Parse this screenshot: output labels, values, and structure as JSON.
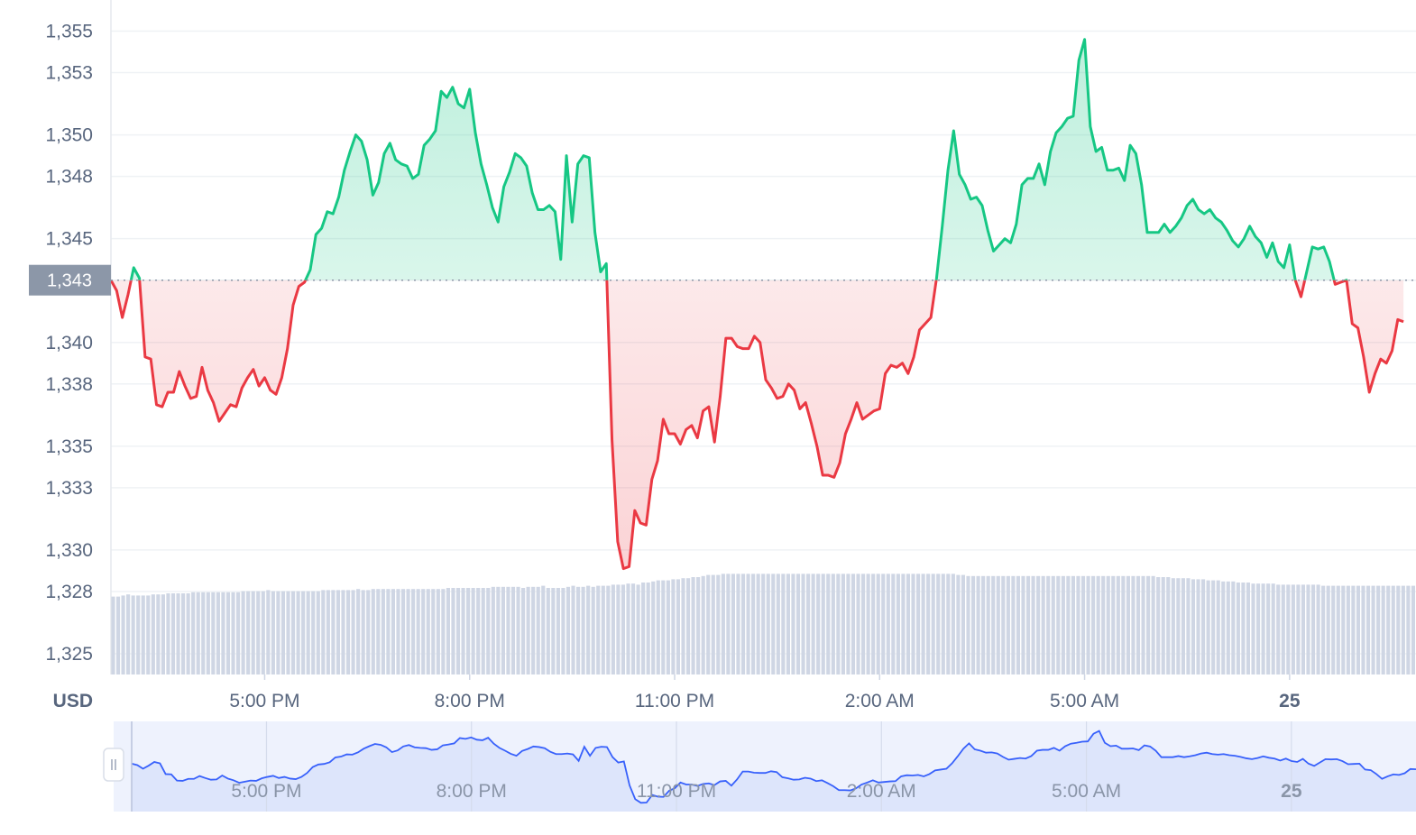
{
  "chart_data": {
    "type": "line",
    "currency_label": "USD",
    "current_price": 1343,
    "current_price_label": "1,343",
    "y_ticks": [
      1325,
      1328,
      1330,
      1333,
      1335,
      1338,
      1340,
      1343,
      1345,
      1348,
      1350,
      1353,
      1355
    ],
    "y_tick_labels": [
      "1,325",
      "1,328",
      "1,330",
      "1,333",
      "1,335",
      "1,338",
      "1,340",
      "1,343",
      "1,345",
      "1,348",
      "1,350",
      "1,353",
      "1,355"
    ],
    "ylim": [
      1324,
      1356.5
    ],
    "x_ticks": [
      {
        "label": "5:00 PM",
        "t": 2.25,
        "bold": false
      },
      {
        "label": "8:00 PM",
        "t": 5.25,
        "bold": false
      },
      {
        "label": "11:00 PM",
        "t": 8.25,
        "bold": false
      },
      {
        "label": "2:00 AM",
        "t": 11.25,
        "bold": false
      },
      {
        "label": "5:00 AM",
        "t": 14.25,
        "bold": false
      },
      {
        "label": "25",
        "t": 17.25,
        "bold": true
      }
    ],
    "xlim": [
      0,
      19.1
    ],
    "colors": {
      "up": "#16c784",
      "down": "#ea3943",
      "volume": "#cfd6e4",
      "navigator_line": "#3861fb",
      "navigator_fill": "#dde5fb",
      "grid": "#eff2f5",
      "badge": "#8c97a8"
    },
    "series": [
      {
        "values": [
          1343,
          1342.5,
          1341.2,
          1342.3,
          1343.6,
          1343.1,
          1339.3,
          1339.2,
          1337,
          1336.9,
          1337.6,
          1337.6,
          1338.6,
          1337.9,
          1337.3,
          1337.4,
          1338.8,
          1337.7,
          1337.1,
          1336.2,
          1336.6,
          1337,
          1336.9,
          1337.8,
          1338.3,
          1338.7,
          1337.9,
          1338.3,
          1337.7,
          1337.5,
          1338.3,
          1339.7,
          1341.8,
          1342.7,
          1342.9,
          1343.5,
          1345.2,
          1345.5,
          1346.3,
          1346.2,
          1347,
          1348.3,
          1349.2,
          1350,
          1349.7,
          1348.8,
          1347.1,
          1347.7,
          1349.1,
          1349.6,
          1348.8,
          1348.6,
          1348.5,
          1347.9,
          1348.1,
          1349.5,
          1349.8,
          1350.2,
          1352.1,
          1351.8,
          1352.3,
          1351.5,
          1351.3,
          1352.2,
          1350.1,
          1348.6,
          1347.6,
          1346.5,
          1345.8,
          1347.5,
          1348.2,
          1349.1,
          1348.9,
          1348.5,
          1347.2,
          1346.4,
          1346.4,
          1346.6,
          1346.3,
          1344,
          1349,
          1345.8,
          1348.6,
          1349,
          1348.9,
          1345.3,
          1343.4,
          1343.8,
          1335.3,
          1330.4,
          1329.1,
          1329.2,
          1331.9,
          1331.3,
          1331.2,
          1333.4,
          1334.3,
          1336.3,
          1335.6,
          1335.6,
          1335.1,
          1335.8,
          1336,
          1335.4,
          1336.7,
          1336.9,
          1335.2,
          1337.4,
          1340.2,
          1340.2,
          1339.8,
          1339.7,
          1339.7,
          1340.3,
          1340,
          1338.2,
          1337.8,
          1337.3,
          1337.4,
          1338,
          1337.7,
          1336.8,
          1337.1,
          1336.1,
          1335,
          1333.6,
          1333.6,
          1333.5,
          1334.2,
          1335.6,
          1336.3,
          1337.1,
          1336.3,
          1336.5,
          1336.7,
          1336.8,
          1338.5,
          1338.9,
          1338.8,
          1339,
          1338.5,
          1339.3,
          1340.6,
          1340.9,
          1341.2,
          1343.1,
          1345.6,
          1348.3,
          1350.2,
          1348.1,
          1347.6,
          1346.9,
          1347,
          1346.6,
          1345.4,
          1344.4,
          1344.7,
          1345,
          1344.8,
          1345.7,
          1347.6,
          1347.9,
          1347.9,
          1348.6,
          1347.6,
          1349.2,
          1350.1,
          1350.4,
          1350.8,
          1350.9,
          1353.6,
          1354.6,
          1350.4,
          1349.2,
          1349.4,
          1348.3,
          1348.3,
          1348.4,
          1347.8,
          1349.5,
          1349.1,
          1347.6,
          1345.3,
          1345.3,
          1345.3,
          1345.7,
          1345.3,
          1345.6,
          1346,
          1346.6,
          1346.9,
          1346.4,
          1346.2,
          1346.4,
          1346,
          1345.8,
          1345.4,
          1344.9,
          1344.6,
          1345,
          1345.6,
          1345.1,
          1344.8,
          1344.1,
          1344.8,
          1343.9,
          1343.6,
          1344.7,
          1343,
          1342.2,
          1343.4,
          1344.6,
          1344.5,
          1344.6,
          1343.9,
          1342.8,
          1342.9,
          1343,
          1340.9,
          1340.7,
          1339.3,
          1337.6,
          1338.5,
          1339.2,
          1339,
          1339.6,
          1341.1,
          1341
        ]
      }
    ],
    "volume": {
      "values": [
        0.72,
        0.72,
        0.73,
        0.74,
        0.73,
        0.73,
        0.73,
        0.73,
        0.74,
        0.74,
        0.74,
        0.75,
        0.75,
        0.75,
        0.75,
        0.75,
        0.76,
        0.76,
        0.76,
        0.76,
        0.76,
        0.76,
        0.76,
        0.76,
        0.76,
        0.76,
        0.77,
        0.77,
        0.77,
        0.77,
        0.77,
        0.78,
        0.77,
        0.77,
        0.77,
        0.77,
        0.77,
        0.77,
        0.77,
        0.77,
        0.77,
        0.77,
        0.78,
        0.78,
        0.78,
        0.78,
        0.78,
        0.78,
        0.78,
        0.79,
        0.78,
        0.78,
        0.79,
        0.79,
        0.79,
        0.79,
        0.79,
        0.79,
        0.79,
        0.79,
        0.79,
        0.79,
        0.79,
        0.79,
        0.79,
        0.79,
        0.79,
        0.8,
        0.8,
        0.8,
        0.8,
        0.8,
        0.8,
        0.8,
        0.8,
        0.8,
        0.81,
        0.81,
        0.81,
        0.81,
        0.81,
        0.81,
        0.8,
        0.81,
        0.81,
        0.81,
        0.82,
        0.8,
        0.8,
        0.8,
        0.8,
        0.81,
        0.82,
        0.81,
        0.81,
        0.82,
        0.81,
        0.82,
        0.82,
        0.82,
        0.83,
        0.83,
        0.83,
        0.84,
        0.84,
        0.83,
        0.85,
        0.85,
        0.86,
        0.87,
        0.87,
        0.87,
        0.88,
        0.88,
        0.89,
        0.89,
        0.9,
        0.9,
        0.91,
        0.92,
        0.92,
        0.92,
        0.93,
        0.93,
        0.93,
        0.93,
        0.93,
        0.93,
        0.93,
        0.93,
        0.93,
        0.93,
        0.93,
        0.93,
        0.93,
        0.93,
        0.93,
        0.93,
        0.93,
        0.93,
        0.93,
        0.93,
        0.93,
        0.93,
        0.93,
        0.93,
        0.93,
        0.93,
        0.93,
        0.93,
        0.93,
        0.93,
        0.93,
        0.93,
        0.93,
        0.93,
        0.93,
        0.93,
        0.93,
        0.93,
        0.93,
        0.93,
        0.93,
        0.93,
        0.93,
        0.93,
        0.93,
        0.93,
        0.93,
        0.92,
        0.92,
        0.91,
        0.91,
        0.91,
        0.91,
        0.91,
        0.91,
        0.91,
        0.91,
        0.91,
        0.91,
        0.91,
        0.91,
        0.91,
        0.91,
        0.91,
        0.91,
        0.91,
        0.91,
        0.91,
        0.91,
        0.91,
        0.91,
        0.91,
        0.91,
        0.91,
        0.91,
        0.91,
        0.91,
        0.91,
        0.91,
        0.91,
        0.91,
        0.91,
        0.91,
        0.91,
        0.91,
        0.91,
        0.91,
        0.9,
        0.9,
        0.9,
        0.89,
        0.89,
        0.89,
        0.89,
        0.88,
        0.88,
        0.88,
        0.87,
        0.87,
        0.87,
        0.86,
        0.86,
        0.86,
        0.85,
        0.85,
        0.85,
        0.84,
        0.84,
        0.84,
        0.84,
        0.84,
        0.83,
        0.83,
        0.83,
        0.83,
        0.83,
        0.83,
        0.83,
        0.83,
        0.83,
        0.82,
        0.82,
        0.82,
        0.82,
        0.82,
        0.82,
        0.82,
        0.82,
        0.82,
        0.82,
        0.82,
        0.82,
        0.82,
        0.82,
        0.82,
        0.82,
        0.82,
        0.82,
        0.82
      ]
    }
  }
}
